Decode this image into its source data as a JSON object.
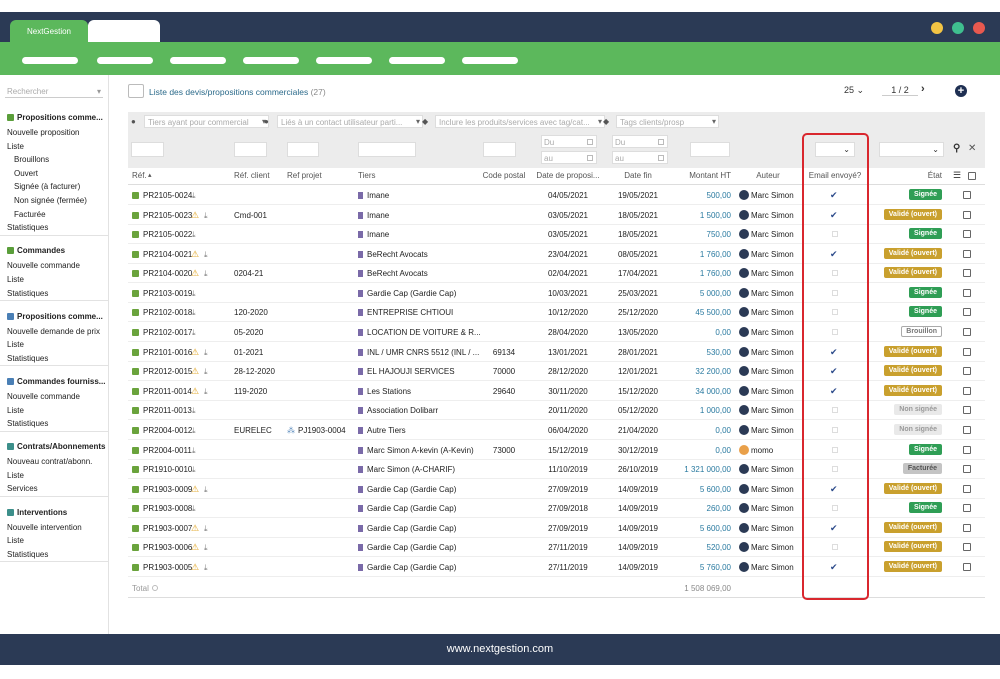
{
  "brand": "NextGestion",
  "footer": "www.nextgestion.com",
  "sidebar": {
    "search": "Rechercher",
    "sections": [
      {
        "title": "Propositions comme...",
        "color": "#5a9e3a",
        "items": [
          {
            "label": "Nouvelle proposition"
          },
          {
            "label": "Liste"
          },
          {
            "label": "Brouillons",
            "sub": true
          },
          {
            "label": "Ouvert",
            "sub": true
          },
          {
            "label": "Signée (à facturer)",
            "sub": true
          },
          {
            "label": "Non signée (fermée)",
            "sub": true
          },
          {
            "label": "Facturée",
            "sub": true
          },
          {
            "label": "Statistiques"
          }
        ]
      },
      {
        "title": "Commandes",
        "color": "#5a9e3a",
        "items": [
          {
            "label": "Nouvelle commande"
          },
          {
            "label": "Liste"
          },
          {
            "label": "Statistiques"
          }
        ]
      },
      {
        "title": "Propositions comme...",
        "color": "#4a7fb5",
        "items": [
          {
            "label": "Nouvelle demande de prix"
          },
          {
            "label": "Liste"
          },
          {
            "label": "Statistiques"
          }
        ]
      },
      {
        "title": "Commandes fourniss...",
        "color": "#4a7fb5",
        "items": [
          {
            "label": "Nouvelle commande"
          },
          {
            "label": "Liste"
          },
          {
            "label": "Statistiques"
          }
        ]
      },
      {
        "title": "Contrats/Abonnements",
        "color": "#3c8f8a",
        "items": [
          {
            "label": "Nouveau contrat/abonn."
          },
          {
            "label": "Liste"
          },
          {
            "label": "Services"
          }
        ]
      },
      {
        "title": "Interventions",
        "color": "#3c8f8a",
        "items": [
          {
            "label": "Nouvelle intervention"
          },
          {
            "label": "Liste"
          },
          {
            "label": "Statistiques"
          }
        ]
      }
    ]
  },
  "header": {
    "title": "Liste des devis/propositions commerciales",
    "count": "(27)",
    "per_page": "25",
    "page": "1",
    "sep": "/",
    "pages": "2"
  },
  "filters": [
    "Tiers ayant pour commercial",
    "Liés à un contact utilisateur parti...",
    "Inclure les produits/services avec tag/cat...",
    "Tags clients/prosp"
  ],
  "date_from": "Du",
  "date_to": "au",
  "columns": {
    "ref": "Réf.",
    "ref_client": "Réf. client",
    "project": "Ref projet",
    "tiers": "Tiers",
    "cp": "Code postal",
    "date": "Date de proposi...",
    "date_end": "Date fin",
    "amount": "Montant HT",
    "author": "Auteur",
    "email": "Email envoyé?",
    "status": "État"
  },
  "status_styles": {
    "Signée": [
      "#2f9e55",
      "#fff",
      "#2f9e55"
    ],
    "Validé (ouvert)": [
      "#c9a02e",
      "#fff",
      "#c9a02e"
    ],
    "Brouillon": [
      "#fff",
      "#777",
      "#aaa"
    ],
    "Non signée": [
      "#e9e9e9",
      "#999",
      "#e9e9e9"
    ],
    "Facturée": [
      "#c4c4c4",
      "#555",
      "#c4c4c4"
    ]
  },
  "rows": [
    {
      "ref": "PR2105-0024",
      "tiers": "Imane",
      "date": "04/05/2021",
      "date_end": "19/05/2021",
      "amount": "500,00",
      "author": "Marc Simon",
      "email": true,
      "status": "Signée"
    },
    {
      "ref": "PR2105-0023",
      "warning": true,
      "ref_client": "Cmd-001",
      "tiers": "Imane",
      "date": "03/05/2021",
      "date_end": "18/05/2021",
      "amount": "1 500,00",
      "author": "Marc Simon",
      "email": true,
      "status": "Validé (ouvert)"
    },
    {
      "ref": "PR2105-0022",
      "tiers": "Imane",
      "date": "03/05/2021",
      "date_end": "18/05/2021",
      "amount": "750,00",
      "author": "Marc Simon",
      "email": false,
      "status": "Signée"
    },
    {
      "ref": "PR2104-0021",
      "warning": true,
      "tiers": "BeRecht Avocats",
      "date": "23/04/2021",
      "date_end": "08/05/2021",
      "amount": "1 760,00",
      "author": "Marc Simon",
      "email": true,
      "status": "Validé (ouvert)"
    },
    {
      "ref": "PR2104-0020",
      "warning": true,
      "ref_client": "0204-21",
      "tiers": "BeRecht Avocats",
      "date": "02/04/2021",
      "date_end": "17/04/2021",
      "amount": "1 760,00",
      "author": "Marc Simon",
      "email": false,
      "status": "Validé (ouvert)"
    },
    {
      "ref": "PR2103-0019",
      "tiers": "Gardie Cap (Gardie Cap)",
      "date": "10/03/2021",
      "date_end": "25/03/2021",
      "amount": "5 000,00",
      "author": "Marc Simon",
      "email": false,
      "status": "Signée"
    },
    {
      "ref": "PR2102-0018",
      "ref_client": "120-2020",
      "tiers": "ENTREPRISE CHTIOUI",
      "date": "10/12/2020",
      "date_end": "25/12/2020",
      "amount": "45 500,00",
      "author": "Marc Simon",
      "email": false,
      "status": "Signée"
    },
    {
      "ref": "PR2102-0017",
      "ref_client": "05-2020",
      "tiers": "LOCATION DE VOITURE & R...",
      "date": "28/04/2020",
      "date_end": "13/05/2020",
      "amount": "0,00",
      "author": "Marc Simon",
      "email": false,
      "status": "Brouillon"
    },
    {
      "ref": "PR2101-0016",
      "warning": true,
      "ref_client": "01-2021",
      "tiers": "INL / UMR CNRS 5512 (INL / ...",
      "cp": "69134",
      "date": "13/01/2021",
      "date_end": "28/01/2021",
      "amount": "530,00",
      "author": "Marc Simon",
      "email": true,
      "status": "Validé (ouvert)"
    },
    {
      "ref": "PR2012-0015",
      "warning": true,
      "ref_client": "28-12-2020",
      "tiers": "EL HAJOUJI SERVICES",
      "cp": "70000",
      "date": "28/12/2020",
      "date_end": "12/01/2021",
      "amount": "32 200,00",
      "author": "Marc Simon",
      "email": true,
      "status": "Validé (ouvert)"
    },
    {
      "ref": "PR2011-0014",
      "warning": true,
      "ref_client": "119-2020",
      "tiers": "Les Stations",
      "cp": "29640",
      "date": "30/11/2020",
      "date_end": "15/12/2020",
      "amount": "34 000,00",
      "author": "Marc Simon",
      "email": true,
      "status": "Validé (ouvert)"
    },
    {
      "ref": "PR2011-0013",
      "tiers": "Association Dolibarr",
      "date": "20/11/2020",
      "date_end": "05/12/2020",
      "amount": "1 000,00",
      "author": "Marc Simon",
      "email": false,
      "status": "Non signée"
    },
    {
      "ref": "PR2004-0012",
      "ref_client": "EURELEC",
      "project": "PJ1903-0004",
      "tiers": "Autre Tiers",
      "date": "06/04/2020",
      "date_end": "21/04/2020",
      "amount": "0,00",
      "author": "Marc Simon",
      "email": false,
      "status": "Non signée"
    },
    {
      "ref": "PR2004-0011",
      "tiers": "Marc Simon A-kevin (A-Kevin)",
      "cp": "73000",
      "date": "15/12/2019",
      "date_end": "30/12/2019",
      "amount": "0,00",
      "author": "momo",
      "email": false,
      "status": "Signée"
    },
    {
      "ref": "PR1910-0010",
      "tiers": "Marc Simon (A-CHARIF)",
      "date": "11/10/2019",
      "date_end": "26/10/2019",
      "amount": "1 321 000,00",
      "author": "Marc Simon",
      "email": false,
      "status": "Facturée"
    },
    {
      "ref": "PR1903-0009",
      "warning": true,
      "tiers": "Gardie Cap (Gardie Cap)",
      "date": "27/09/2019",
      "date_end": "14/09/2019",
      "amount": "5 600,00",
      "author": "Marc Simon",
      "email": true,
      "status": "Validé (ouvert)"
    },
    {
      "ref": "PR1903-0008",
      "tiers": "Gardie Cap (Gardie Cap)",
      "date": "27/09/2018",
      "date_end": "14/09/2019",
      "amount": "260,00",
      "author": "Marc Simon",
      "email": false,
      "status": "Signée"
    },
    {
      "ref": "PR1903-0007",
      "warning": true,
      "tiers": "Gardie Cap (Gardie Cap)",
      "date": "27/09/2019",
      "date_end": "14/09/2019",
      "amount": "5 600,00",
      "author": "Marc Simon",
      "email": true,
      "status": "Validé (ouvert)"
    },
    {
      "ref": "PR1903-0006",
      "warning": true,
      "tiers": "Gardie Cap (Gardie Cap)",
      "date": "27/11/2019",
      "date_end": "14/09/2019",
      "amount": "520,00",
      "author": "Marc Simon",
      "email": false,
      "status": "Validé (ouvert)"
    },
    {
      "ref": "PR1903-0005",
      "warning": true,
      "tiers": "Gardie Cap (Gardie Cap)",
      "date": "27/11/2019",
      "date_end": "14/09/2019",
      "amount": "5 760,00",
      "author": "Marc Simon",
      "email": true,
      "status": "Validé (ouvert)"
    }
  ],
  "total": {
    "label": "Total",
    "amount": "1 508 069,00"
  }
}
